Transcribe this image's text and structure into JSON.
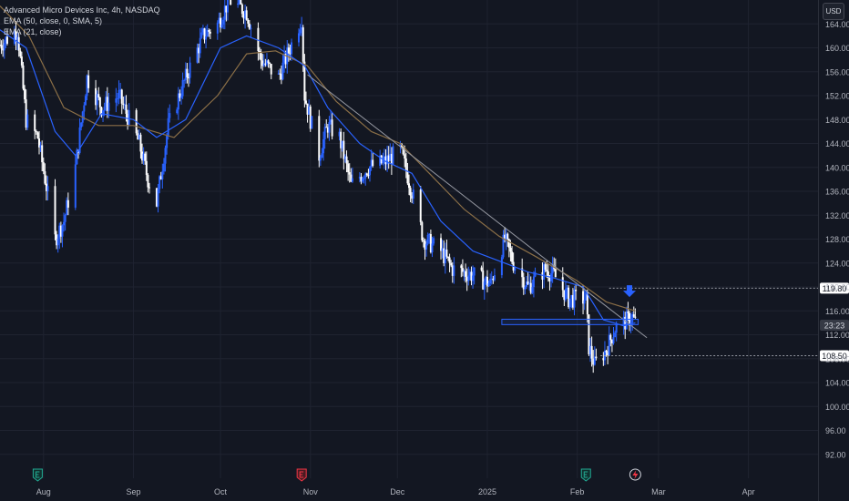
{
  "header": {
    "title_line": "Advanced Micro Devices Inc, 4h, NASDAQ",
    "ema50_label": "EMA (50, close, 0, SMA, 5)",
    "ema21_label": "EMA (21, close)"
  },
  "currency": "USD",
  "colors": {
    "background": "#131722",
    "up": "#2962ff",
    "down": "#ffffff",
    "ema21": "#2962ff",
    "ema50": "#8b6f47",
    "trendline": "#9598a1",
    "level_band": "#2962ff",
    "arrow": "#2962ff"
  },
  "icons": [
    "earnings-icon",
    "earnings-red-icon",
    "earnings-icon",
    "event-lightning-icon"
  ],
  "chart_data": {
    "type": "candlestick",
    "title": "Advanced Micro Devices Inc, 4h, NASDAQ",
    "ylim": [
      88.0,
      168.0
    ],
    "yticks": [
      92.0,
      96.0,
      100.0,
      104.0,
      108.0,
      112.0,
      116.0,
      120.0,
      124.0,
      128.0,
      132.0,
      136.0,
      140.0,
      144.0,
      148.0,
      152.0,
      156.0,
      160.0,
      164.0
    ],
    "ytick_labels": [
      "92.00",
      "96.00",
      "100.00",
      "104.00",
      "108.00",
      "112.00",
      "116.00",
      "120.00",
      "124.00",
      "128.00",
      "132.00",
      "136.00",
      "140.00",
      "144.00",
      "148.00",
      "152.00",
      "156.00",
      "160.00",
      "164.00"
    ],
    "x_domain": [
      "2024-07-17",
      "2025-04-25"
    ],
    "xticks": [
      {
        "date": "2024-08-01",
        "label": "Aug"
      },
      {
        "date": "2024-09-01",
        "label": "Sep"
      },
      {
        "date": "2024-10-01",
        "label": "Oct"
      },
      {
        "date": "2024-11-01",
        "label": "Nov"
      },
      {
        "date": "2024-12-01",
        "label": "Dec"
      },
      {
        "date": "2025-01-01",
        "label": "2025"
      },
      {
        "date": "2025-02-01",
        "label": "Feb"
      },
      {
        "date": "2025-03-01",
        "label": "Mar"
      },
      {
        "date": "2025-04-01",
        "label": "Apr"
      }
    ],
    "price_path": [
      [
        "2024-07-17",
        160.5
      ],
      [
        "2024-07-23",
        163.0
      ],
      [
        "2024-07-26",
        148.0
      ],
      [
        "2024-07-30",
        145.0
      ],
      [
        "2024-08-03",
        134.0
      ],
      [
        "2024-08-05",
        128.0
      ],
      [
        "2024-08-08",
        131.0
      ],
      [
        "2024-08-12",
        140.0
      ],
      [
        "2024-08-16",
        155.0
      ],
      [
        "2024-08-21",
        150.0
      ],
      [
        "2024-08-27",
        152.0
      ],
      [
        "2024-09-03",
        144.0
      ],
      [
        "2024-09-06",
        138.0
      ],
      [
        "2024-09-09",
        134.0
      ],
      [
        "2024-09-13",
        147.0
      ],
      [
        "2024-09-19",
        155.0
      ],
      [
        "2024-09-25",
        162.0
      ],
      [
        "2024-09-30",
        164.0
      ],
      [
        "2024-10-04",
        168.0
      ],
      [
        "2024-10-10",
        166.0
      ],
      [
        "2024-10-15",
        158.0
      ],
      [
        "2024-10-21",
        155.0
      ],
      [
        "2024-10-25",
        160.0
      ],
      [
        "2024-10-29",
        165.0
      ],
      [
        "2024-10-30",
        152.0
      ],
      [
        "2024-11-04",
        142.0
      ],
      [
        "2024-11-07",
        147.0
      ],
      [
        "2024-11-11",
        145.0
      ],
      [
        "2024-11-15",
        137.0
      ],
      [
        "2024-11-21",
        140.0
      ],
      [
        "2024-11-27",
        141.0
      ],
      [
        "2024-12-02",
        143.0
      ],
      [
        "2024-12-06",
        136.0
      ],
      [
        "2024-12-10",
        128.0
      ],
      [
        "2024-12-16",
        126.0
      ],
      [
        "2024-12-20",
        123.0
      ],
      [
        "2024-12-27",
        122.0
      ],
      [
        "2025-01-02",
        120.5
      ],
      [
        "2025-01-07",
        128.0
      ],
      [
        "2025-01-10",
        124.0
      ],
      [
        "2025-01-15",
        120.0
      ],
      [
        "2025-01-21",
        123.0
      ],
      [
        "2025-01-24",
        122.0
      ],
      [
        "2025-01-29",
        118.0
      ],
      [
        "2025-02-04",
        118.0
      ],
      [
        "2025-02-05",
        110.0
      ],
      [
        "2025-02-07",
        107.0
      ],
      [
        "2025-02-11",
        109.5
      ],
      [
        "2025-02-14",
        113.0
      ],
      [
        "2025-02-20",
        115.0
      ],
      [
        "2025-02-21",
        114.0
      ]
    ],
    "ema21": [
      [
        "2024-07-17",
        163.0
      ],
      [
        "2024-07-26",
        160.0
      ],
      [
        "2024-08-05",
        146.0
      ],
      [
        "2024-08-12",
        142.0
      ],
      [
        "2024-08-21",
        149.0
      ],
      [
        "2024-09-01",
        148.0
      ],
      [
        "2024-09-09",
        145.0
      ],
      [
        "2024-09-19",
        148.0
      ],
      [
        "2024-10-01",
        160.0
      ],
      [
        "2024-10-10",
        162.0
      ],
      [
        "2024-10-21",
        160.0
      ],
      [
        "2024-10-30",
        157.0
      ],
      [
        "2024-11-07",
        150.0
      ],
      [
        "2024-11-18",
        144.0
      ],
      [
        "2024-11-27",
        141.0
      ],
      [
        "2024-12-06",
        139.0
      ],
      [
        "2024-12-16",
        131.0
      ],
      [
        "2024-12-27",
        126.0
      ],
      [
        "2025-01-07",
        124.0
      ],
      [
        "2025-01-15",
        122.5
      ],
      [
        "2025-01-24",
        121.5
      ],
      [
        "2025-02-03",
        120.0
      ],
      [
        "2025-02-10",
        114.5
      ],
      [
        "2025-02-17",
        113.5
      ],
      [
        "2025-02-21",
        114.0
      ]
    ],
    "ema50": [
      [
        "2024-07-17",
        167.0
      ],
      [
        "2024-07-27",
        162.0
      ],
      [
        "2024-08-08",
        150.0
      ],
      [
        "2024-08-20",
        147.0
      ],
      [
        "2024-09-01",
        147.0
      ],
      [
        "2024-09-15",
        145.0
      ],
      [
        "2024-09-30",
        152.0
      ],
      [
        "2024-10-10",
        159.0
      ],
      [
        "2024-10-20",
        159.5
      ],
      [
        "2024-10-31",
        157.0
      ],
      [
        "2024-11-10",
        151.0
      ],
      [
        "2024-11-22",
        146.0
      ],
      [
        "2024-12-02",
        144.0
      ],
      [
        "2024-12-12",
        139.0
      ],
      [
        "2024-12-24",
        133.0
      ],
      [
        "2025-01-05",
        128.5
      ],
      [
        "2025-01-18",
        125.0
      ],
      [
        "2025-02-01",
        121.0
      ],
      [
        "2025-02-11",
        117.5
      ],
      [
        "2025-02-21",
        116.0
      ]
    ],
    "trendline": [
      [
        "2024-10-31",
        155.5
      ],
      [
        "2025-02-25",
        111.5
      ]
    ],
    "horizontal_levels": [
      {
        "price": 119.8,
        "label": "119.80",
        "from": "2025-02-12"
      },
      {
        "price": 108.5,
        "label": "108.50",
        "from": "2025-02-09"
      }
    ],
    "support_band": {
      "from": "2025-01-06",
      "to": "2025-02-22",
      "low": 113.7,
      "high": 114.6
    },
    "arrow_down": {
      "date": "2025-02-19",
      "price": 118.3
    },
    "current_price_label": {
      "price": 113.6,
      "label": "23:23"
    },
    "event_markers": [
      {
        "date": "2024-07-30",
        "icon": "earnings-icon"
      },
      {
        "date": "2024-10-29",
        "icon": "earnings-red-icon"
      },
      {
        "date": "2025-02-04",
        "icon": "earnings-icon"
      },
      {
        "date": "2025-02-21",
        "icon": "event-lightning-icon"
      }
    ]
  }
}
